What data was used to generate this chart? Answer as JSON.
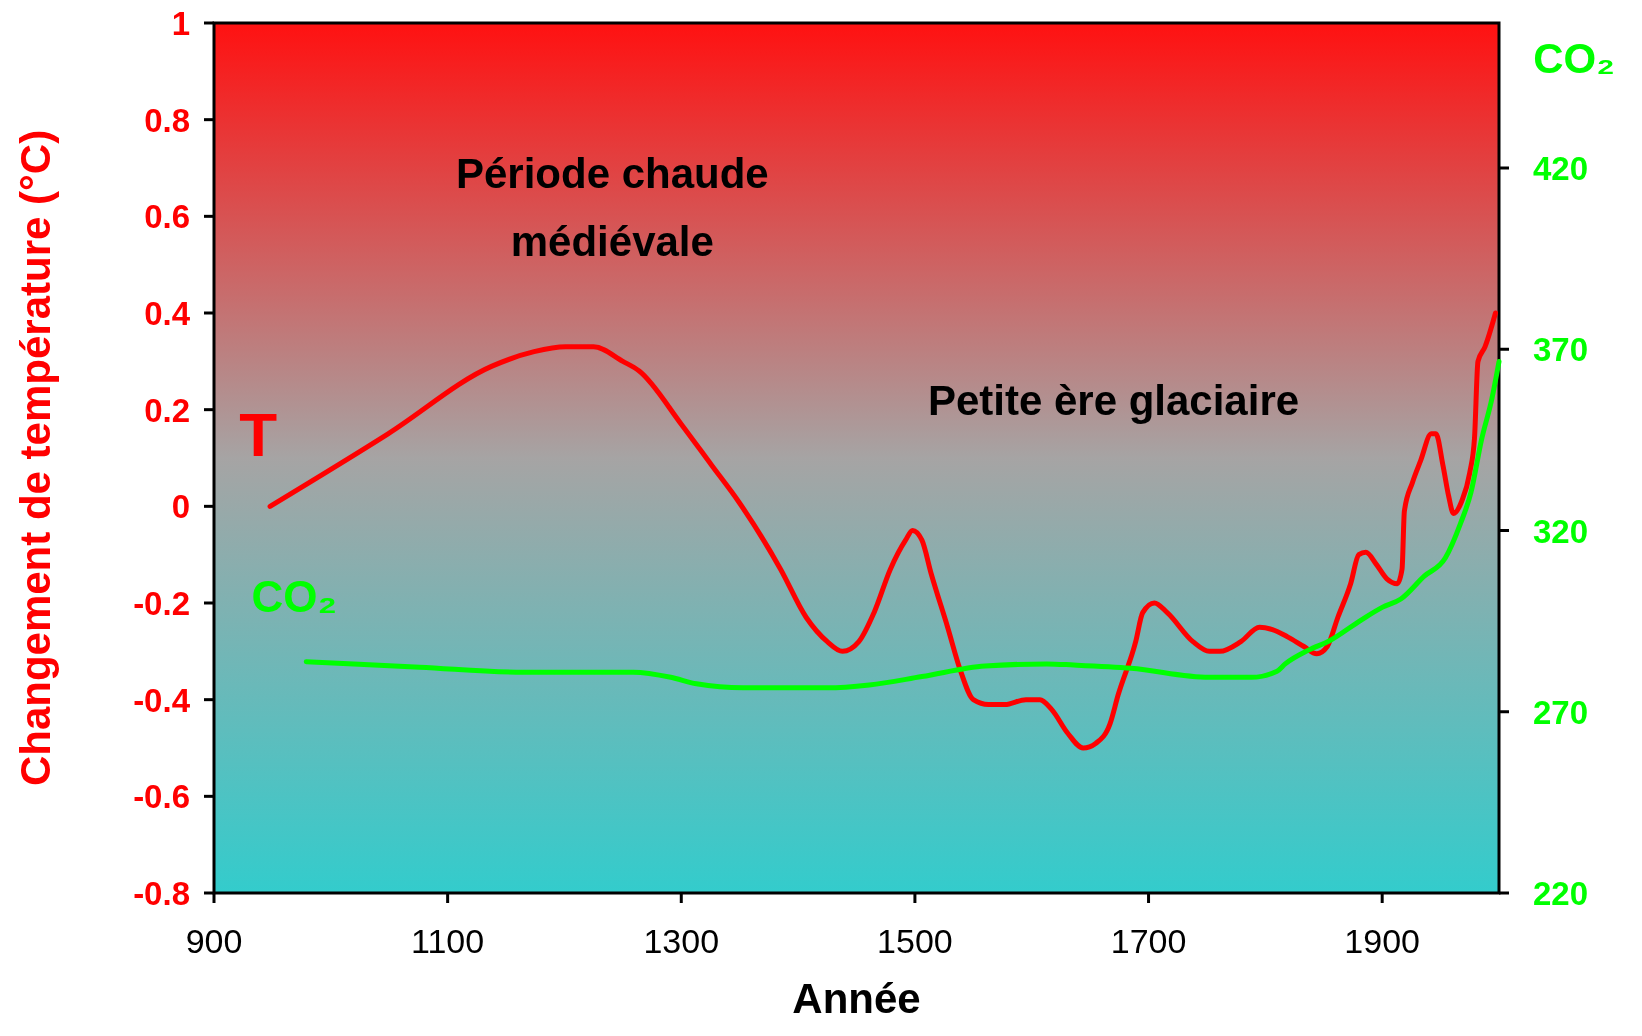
{
  "chart_data": {
    "type": "line",
    "xlabel": "Année",
    "ylabel": "Changement de température (°C)",
    "y2label": "CO₂",
    "xlim": [
      900,
      2000
    ],
    "xticks": [
      900,
      1100,
      1300,
      1500,
      1700,
      1900
    ],
    "ylim": [
      -0.8,
      1
    ],
    "yticks": [
      -0.8,
      -0.6,
      -0.4,
      -0.2,
      0,
      0.2,
      0.4,
      0.6,
      0.8,
      1
    ],
    "y2lim": [
      220,
      460
    ],
    "y2ticks": [
      220,
      270,
      320,
      370,
      420
    ],
    "grid": false,
    "annotations": [
      "Période chaude médiévale",
      "Petite ère glaciaire"
    ],
    "series": [
      {
        "name": "T",
        "color": "#ff0000",
        "x": [
          948,
          1049,
          1138,
          1174,
          1201,
          1225,
          1250,
          1264,
          1300,
          1326,
          1349,
          1385,
          1407,
          1425,
          1438,
          1452,
          1465,
          1479,
          1492,
          1498,
          1506,
          1514,
          1528,
          1539,
          1550,
          1563,
          1577,
          1595,
          1607,
          1617,
          1631,
          1644,
          1655,
          1667,
          1674,
          1689,
          1695,
          1705,
          1716,
          1738,
          1752,
          1761,
          1779,
          1795,
          1806,
          1819,
          1833,
          1844,
          1853,
          1862,
          1873,
          1880,
          1886,
          1895,
          1904,
          1913,
          1917,
          1919,
          1926,
          1933,
          1942,
          1946,
          1952,
          1957,
          1961,
          1968,
          1975,
          1979,
          1982,
          1988,
          1997
        ],
        "values": [
          0,
          0.15,
          0.29,
          0.32,
          0.33,
          0.33,
          0.3,
          0.28,
          0.17,
          0.085,
          0.01,
          -0.13,
          -0.23,
          -0.28,
          -0.3,
          -0.28,
          -0.22,
          -0.13,
          -0.07,
          -0.05,
          -0.07,
          -0.14,
          -0.25,
          -0.34,
          -0.4,
          -0.41,
          -0.41,
          -0.4,
          -0.4,
          -0.42,
          -0.47,
          -0.5,
          -0.49,
          -0.45,
          -0.39,
          -0.28,
          -0.22,
          -0.2,
          -0.22,
          -0.28,
          -0.3,
          -0.3,
          -0.28,
          -0.25,
          -0.255,
          -0.27,
          -0.29,
          -0.305,
          -0.29,
          -0.23,
          -0.16,
          -0.1,
          -0.095,
          -0.12,
          -0.15,
          -0.16,
          -0.13,
          -0.01,
          0.05,
          0.095,
          0.15,
          0.15,
          0.085,
          0.02,
          -0.015,
          0.01,
          0.07,
          0.14,
          0.3,
          0.33,
          0.4
        ]
      },
      {
        "name": "CO₂",
        "color": "#00ff00",
        "axis": "y2",
        "x": [
          979,
          1076,
          1165,
          1259,
          1291,
          1313,
          1353,
          1425,
          1461,
          1506,
          1560,
          1613,
          1636,
          1685,
          1752,
          1788,
          1810,
          1817,
          1837,
          1855,
          1882,
          1900,
          1916,
          1936,
          1954,
          1967,
          1976,
          1985,
          1994,
          2000
        ],
        "values": [
          283.8,
          282.3,
          280.9,
          280.9,
          279.5,
          277.7,
          276.6,
          276.6,
          277.4,
          279.7,
          282.6,
          283.2,
          282.9,
          282,
          279.5,
          279.5,
          281.2,
          283.2,
          287,
          289.6,
          295.3,
          298.8,
          301.1,
          307.4,
          312.4,
          321.9,
          330.5,
          345,
          356.5,
          366.6
        ]
      }
    ]
  }
}
